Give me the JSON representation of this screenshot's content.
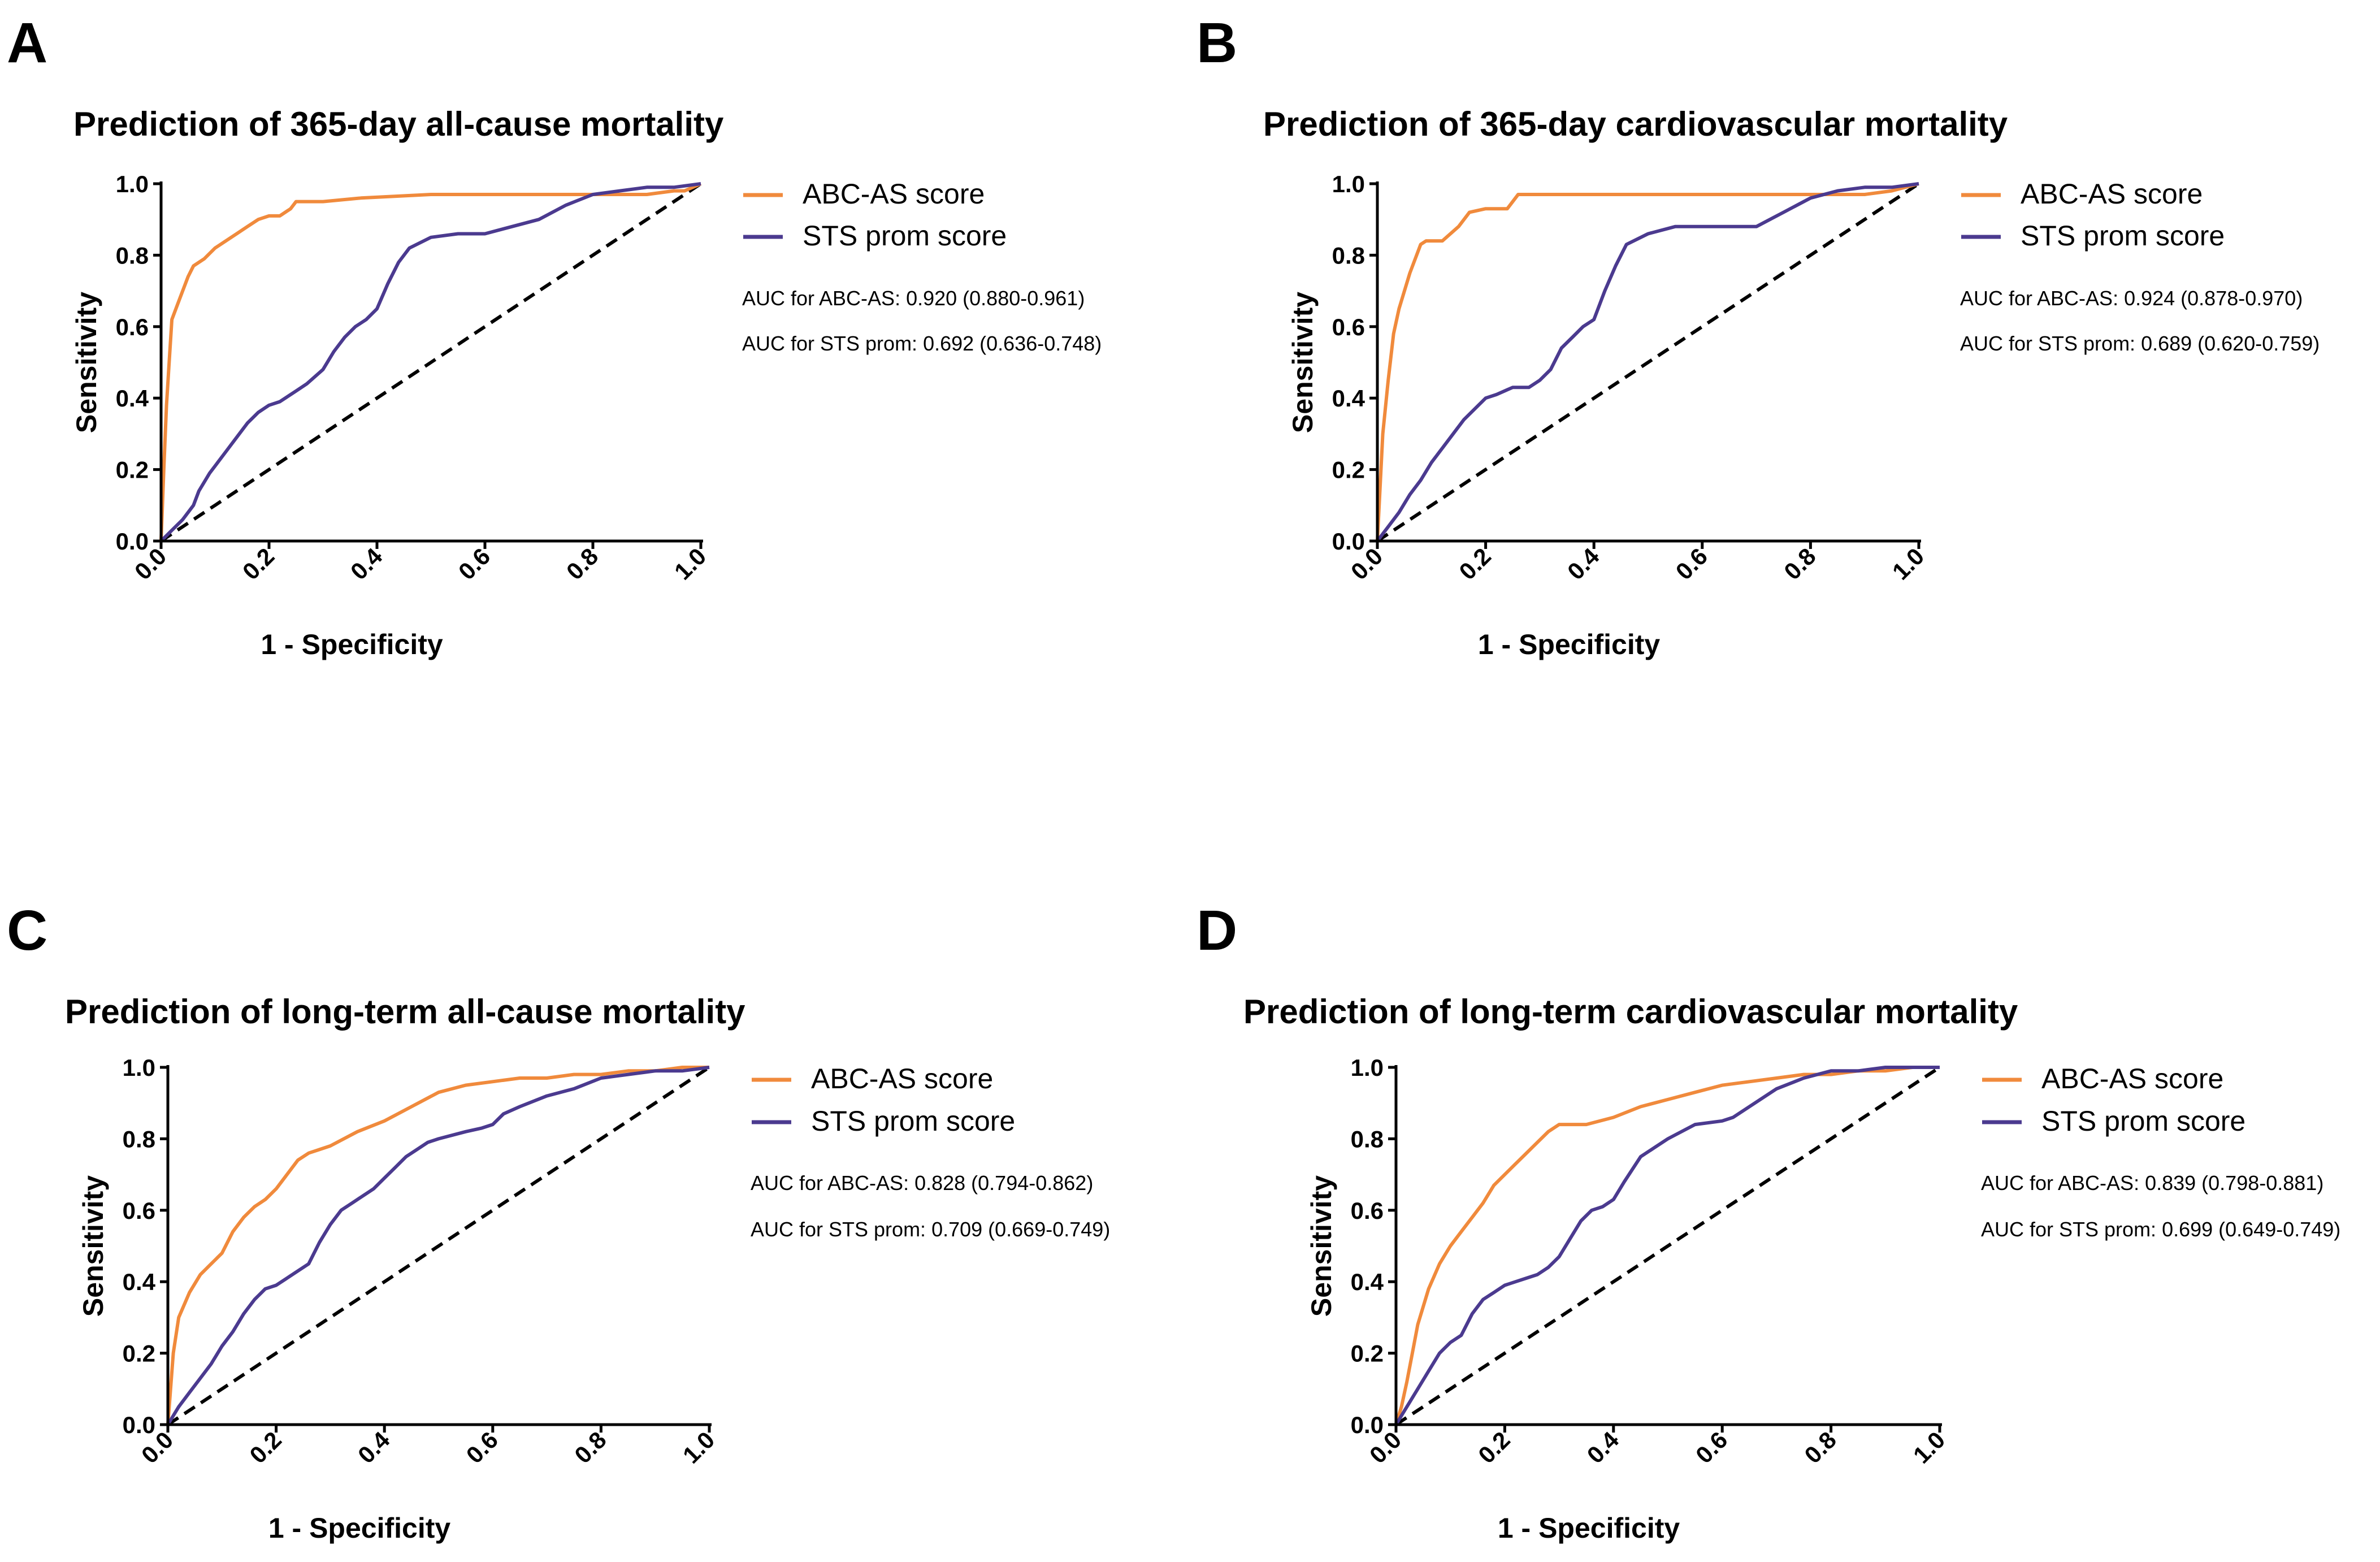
{
  "chart_data": [
    {
      "panel": "A",
      "type": "line",
      "title": "Prediction of 365-day all-cause mortality",
      "xlabel": "1 - Specificity",
      "ylabel": "Sensitivity",
      "xlim": [
        0,
        1
      ],
      "ylim": [
        0,
        1
      ],
      "xticks": [
        "0.0",
        "0.2",
        "0.4",
        "0.6",
        "0.8",
        "1.0"
      ],
      "yticks": [
        "0.0",
        "0.2",
        "0.4",
        "0.6",
        "0.8",
        "1.0"
      ],
      "legend": [
        "ABC-AS score",
        "STS prom score"
      ],
      "auc": [
        "AUC for ABC-AS: 0.920 (0.880-0.961)",
        "AUC for STS prom: 0.692 (0.636-0.748)"
      ],
      "series": [
        {
          "name": "ABC-AS score",
          "color": "#F08A3C",
          "x": [
            0,
            0.005,
            0.01,
            0.015,
            0.02,
            0.03,
            0.04,
            0.05,
            0.06,
            0.08,
            0.1,
            0.12,
            0.14,
            0.16,
            0.18,
            0.2,
            0.22,
            0.24,
            0.25,
            0.3,
            0.37,
            0.5,
            0.7,
            0.8,
            0.85,
            0.9,
            0.95,
            0.97,
            1.0
          ],
          "y": [
            0,
            0.2,
            0.38,
            0.5,
            0.62,
            0.66,
            0.7,
            0.74,
            0.77,
            0.79,
            0.82,
            0.84,
            0.86,
            0.88,
            0.9,
            0.91,
            0.91,
            0.93,
            0.95,
            0.95,
            0.96,
            0.97,
            0.97,
            0.97,
            0.97,
            0.97,
            0.98,
            0.98,
            1.0
          ]
        },
        {
          "name": "STS prom score",
          "color": "#4B3A8F",
          "x": [
            0,
            0.02,
            0.04,
            0.06,
            0.07,
            0.09,
            0.1,
            0.12,
            0.14,
            0.16,
            0.18,
            0.2,
            0.22,
            0.25,
            0.27,
            0.3,
            0.32,
            0.34,
            0.36,
            0.38,
            0.4,
            0.42,
            0.44,
            0.46,
            0.5,
            0.55,
            0.6,
            0.65,
            0.7,
            0.75,
            0.8,
            0.85,
            0.9,
            0.95,
            1.0
          ],
          "y": [
            0,
            0.03,
            0.06,
            0.1,
            0.14,
            0.19,
            0.21,
            0.25,
            0.29,
            0.33,
            0.36,
            0.38,
            0.39,
            0.42,
            0.44,
            0.48,
            0.53,
            0.57,
            0.6,
            0.62,
            0.65,
            0.72,
            0.78,
            0.82,
            0.85,
            0.86,
            0.86,
            0.88,
            0.9,
            0.94,
            0.97,
            0.98,
            0.99,
            0.99,
            1.0
          ]
        }
      ]
    },
    {
      "panel": "B",
      "type": "line",
      "title": "Prediction of 365-day cardiovascular mortality",
      "xlabel": "1 - Specificity",
      "ylabel": "Sensitivity",
      "xlim": [
        0,
        1
      ],
      "ylim": [
        0,
        1
      ],
      "xticks": [
        "0.0",
        "0.2",
        "0.4",
        "0.6",
        "0.8",
        "1.0"
      ],
      "yticks": [
        "0.0",
        "0.2",
        "0.4",
        "0.6",
        "0.8",
        "1.0"
      ],
      "legend": [
        "ABC-AS score",
        "STS prom score"
      ],
      "auc": [
        "AUC for ABC-AS: 0.924 (0.878-0.970)",
        "AUC for STS prom: 0.689 (0.620-0.759)"
      ],
      "series": [
        {
          "name": "ABC-AS score",
          "color": "#F08A3C",
          "x": [
            0,
            0.005,
            0.01,
            0.02,
            0.03,
            0.04,
            0.05,
            0.06,
            0.08,
            0.09,
            0.12,
            0.15,
            0.17,
            0.2,
            0.24,
            0.26,
            0.3,
            0.5,
            0.7,
            0.9,
            0.95,
            1.0
          ],
          "y": [
            0,
            0.15,
            0.3,
            0.45,
            0.58,
            0.65,
            0.7,
            0.75,
            0.83,
            0.84,
            0.84,
            0.88,
            0.92,
            0.93,
            0.93,
            0.97,
            0.97,
            0.97,
            0.97,
            0.97,
            0.98,
            1.0
          ]
        },
        {
          "name": "STS prom score",
          "color": "#4B3A8F",
          "x": [
            0,
            0.02,
            0.04,
            0.06,
            0.08,
            0.1,
            0.12,
            0.14,
            0.16,
            0.18,
            0.2,
            0.22,
            0.25,
            0.28,
            0.3,
            0.32,
            0.34,
            0.36,
            0.38,
            0.4,
            0.42,
            0.44,
            0.46,
            0.5,
            0.55,
            0.6,
            0.65,
            0.7,
            0.75,
            0.8,
            0.85,
            0.9,
            0.95,
            1.0
          ],
          "y": [
            0,
            0.04,
            0.08,
            0.13,
            0.17,
            0.22,
            0.26,
            0.3,
            0.34,
            0.37,
            0.4,
            0.41,
            0.43,
            0.43,
            0.45,
            0.48,
            0.54,
            0.57,
            0.6,
            0.62,
            0.7,
            0.77,
            0.83,
            0.86,
            0.88,
            0.88,
            0.88,
            0.88,
            0.92,
            0.96,
            0.98,
            0.99,
            0.99,
            1.0
          ]
        }
      ]
    },
    {
      "panel": "C",
      "type": "line",
      "title": "Prediction of long-term all-cause mortality",
      "xlabel": "1 - Specificity",
      "ylabel": "Sensitivity",
      "xlim": [
        0,
        1
      ],
      "ylim": [
        0,
        1
      ],
      "xticks": [
        "0.0",
        "0.2",
        "0.4",
        "0.6",
        "0.8",
        "1.0"
      ],
      "yticks": [
        "0.0",
        "0.2",
        "0.4",
        "0.6",
        "0.8",
        "1.0"
      ],
      "legend": [
        "ABC-AS score",
        "STS prom score"
      ],
      "auc": [
        "AUC for ABC-AS: 0.828 (0.794-0.862)",
        "AUC for STS prom: 0.709 (0.669-0.749)"
      ],
      "series": [
        {
          "name": "ABC-AS score",
          "color": "#F08A3C",
          "x": [
            0,
            0.01,
            0.02,
            0.04,
            0.06,
            0.08,
            0.1,
            0.12,
            0.14,
            0.16,
            0.18,
            0.2,
            0.22,
            0.24,
            0.26,
            0.28,
            0.3,
            0.35,
            0.4,
            0.45,
            0.5,
            0.55,
            0.6,
            0.65,
            0.7,
            0.75,
            0.8,
            0.85,
            0.9,
            0.95,
            1.0
          ],
          "y": [
            0,
            0.2,
            0.3,
            0.37,
            0.42,
            0.45,
            0.48,
            0.54,
            0.58,
            0.61,
            0.63,
            0.66,
            0.7,
            0.74,
            0.76,
            0.77,
            0.78,
            0.82,
            0.85,
            0.89,
            0.93,
            0.95,
            0.96,
            0.97,
            0.97,
            0.98,
            0.98,
            0.99,
            0.99,
            1.0,
            1.0
          ]
        },
        {
          "name": "STS prom score",
          "color": "#4B3A8F",
          "x": [
            0,
            0.02,
            0.04,
            0.06,
            0.08,
            0.1,
            0.12,
            0.14,
            0.16,
            0.18,
            0.2,
            0.22,
            0.24,
            0.26,
            0.28,
            0.3,
            0.32,
            0.34,
            0.36,
            0.38,
            0.4,
            0.42,
            0.44,
            0.46,
            0.48,
            0.5,
            0.55,
            0.58,
            0.6,
            0.62,
            0.65,
            0.7,
            0.75,
            0.8,
            0.85,
            0.9,
            0.95,
            1.0
          ],
          "y": [
            0,
            0.05,
            0.09,
            0.13,
            0.17,
            0.22,
            0.26,
            0.31,
            0.35,
            0.38,
            0.39,
            0.41,
            0.43,
            0.45,
            0.51,
            0.56,
            0.6,
            0.62,
            0.64,
            0.66,
            0.69,
            0.72,
            0.75,
            0.77,
            0.79,
            0.8,
            0.82,
            0.83,
            0.84,
            0.87,
            0.89,
            0.92,
            0.94,
            0.97,
            0.98,
            0.99,
            0.99,
            1.0
          ]
        }
      ]
    },
    {
      "panel": "D",
      "type": "line",
      "title": "Prediction of long-term cardiovascular mortality",
      "xlabel": "1 - Specificity",
      "ylabel": "Sensitivity",
      "xlim": [
        0,
        1
      ],
      "ylim": [
        0,
        1
      ],
      "xticks": [
        "0.0",
        "0.2",
        "0.4",
        "0.6",
        "0.8",
        "1.0"
      ],
      "yticks": [
        "0.0",
        "0.2",
        "0.4",
        "0.6",
        "0.8",
        "1.0"
      ],
      "legend": [
        "ABC-AS score",
        "STS prom score"
      ],
      "auc": [
        "AUC for ABC-AS: 0.839 (0.798-0.881)",
        "AUC for STS prom: 0.699 (0.649-0.749)"
      ],
      "series": [
        {
          "name": "ABC-AS score",
          "color": "#F08A3C",
          "x": [
            0,
            0.01,
            0.02,
            0.03,
            0.04,
            0.06,
            0.08,
            0.1,
            0.12,
            0.14,
            0.16,
            0.18,
            0.2,
            0.22,
            0.24,
            0.26,
            0.28,
            0.3,
            0.35,
            0.4,
            0.45,
            0.5,
            0.55,
            0.6,
            0.65,
            0.7,
            0.75,
            0.8,
            0.85,
            0.9,
            0.95,
            1.0
          ],
          "y": [
            0,
            0.05,
            0.12,
            0.2,
            0.28,
            0.38,
            0.45,
            0.5,
            0.54,
            0.58,
            0.62,
            0.67,
            0.7,
            0.73,
            0.76,
            0.79,
            0.82,
            0.84,
            0.84,
            0.86,
            0.89,
            0.91,
            0.93,
            0.95,
            0.96,
            0.97,
            0.98,
            0.98,
            0.99,
            0.99,
            1.0,
            1.0
          ]
        },
        {
          "name": "STS prom score",
          "color": "#4B3A8F",
          "x": [
            0,
            0.02,
            0.04,
            0.06,
            0.08,
            0.1,
            0.12,
            0.14,
            0.16,
            0.18,
            0.2,
            0.22,
            0.24,
            0.26,
            0.28,
            0.3,
            0.32,
            0.34,
            0.36,
            0.38,
            0.4,
            0.42,
            0.45,
            0.5,
            0.55,
            0.6,
            0.62,
            0.65,
            0.7,
            0.75,
            0.8,
            0.85,
            0.9,
            0.95,
            1.0
          ],
          "y": [
            0,
            0.05,
            0.1,
            0.15,
            0.2,
            0.23,
            0.25,
            0.31,
            0.35,
            0.37,
            0.39,
            0.4,
            0.41,
            0.42,
            0.44,
            0.47,
            0.52,
            0.57,
            0.6,
            0.61,
            0.63,
            0.68,
            0.75,
            0.8,
            0.84,
            0.85,
            0.86,
            0.89,
            0.94,
            0.97,
            0.99,
            0.99,
            1.0,
            1.0,
            1.0
          ]
        }
      ]
    }
  ]
}
